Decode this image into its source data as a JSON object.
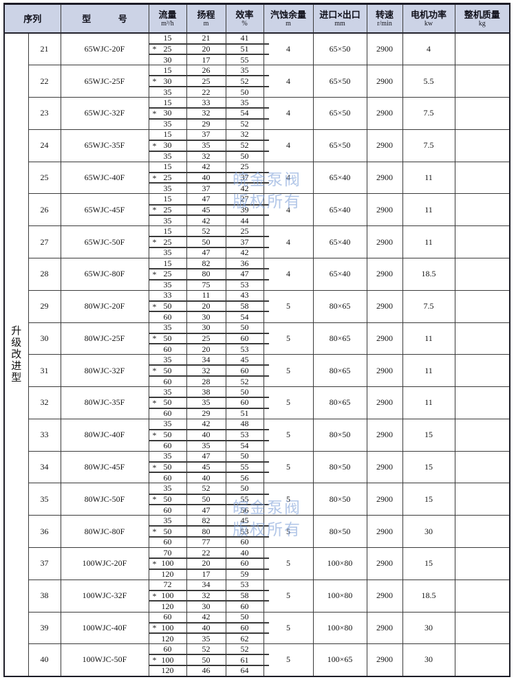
{
  "category_label": "升级改进型",
  "watermark": {
    "line1": "皖金泵阀",
    "line2": "版权所有"
  },
  "colors": {
    "header_bg": "#ccd3e6",
    "border_dark": "#1c1c26",
    "grid_line": "#3a3a3a",
    "watermark_blue": "#80a2d8"
  },
  "header": {
    "seq": {
      "label": "序列"
    },
    "model": {
      "label": "型 号"
    },
    "flow": {
      "label": "流量",
      "unit": "m³/h"
    },
    "head": {
      "label": "扬程",
      "unit": "m"
    },
    "eff": {
      "label": "效率",
      "unit": "%"
    },
    "npsh": {
      "label": "汽蚀余量",
      "unit": "m"
    },
    "ports": {
      "label": "进口×出口",
      "unit": "mm"
    },
    "speed": {
      "label": "转速",
      "unit": "r/min"
    },
    "power": {
      "label": "电机功率",
      "unit": "kw"
    },
    "weight": {
      "label": "整机质量",
      "unit": "kg"
    }
  },
  "rows": [
    {
      "seq": "21",
      "model": "65WJC-20F",
      "sub": [
        {
          "flow": "15",
          "head": "21",
          "eff": "41",
          "star": false
        },
        {
          "flow": "25",
          "head": "20",
          "eff": "51",
          "star": true
        },
        {
          "flow": "30",
          "head": "17",
          "eff": "55",
          "star": false
        }
      ],
      "npsh": "4",
      "ports": "65×50",
      "speed": "2900",
      "power": "4",
      "weight": ""
    },
    {
      "seq": "22",
      "model": "65WJC-25F",
      "sub": [
        {
          "flow": "15",
          "head": "26",
          "eff": "35",
          "star": false
        },
        {
          "flow": "30",
          "head": "25",
          "eff": "52",
          "star": true
        },
        {
          "flow": "35",
          "head": "22",
          "eff": "50",
          "star": false
        }
      ],
      "npsh": "4",
      "ports": "65×50",
      "speed": "2900",
      "power": "5.5",
      "weight": ""
    },
    {
      "seq": "23",
      "model": "65WJC-32F",
      "sub": [
        {
          "flow": "15",
          "head": "33",
          "eff": "35",
          "star": false
        },
        {
          "flow": "30",
          "head": "32",
          "eff": "54",
          "star": true
        },
        {
          "flow": "35",
          "head": "29",
          "eff": "52",
          "star": false
        }
      ],
      "npsh": "4",
      "ports": "65×50",
      "speed": "2900",
      "power": "7.5",
      "weight": ""
    },
    {
      "seq": "24",
      "model": "65WJC-35F",
      "sub": [
        {
          "flow": "15",
          "head": "37",
          "eff": "32",
          "star": false
        },
        {
          "flow": "30",
          "head": "35",
          "eff": "52",
          "star": true
        },
        {
          "flow": "35",
          "head": "32",
          "eff": "50",
          "star": false
        }
      ],
      "npsh": "4",
      "ports": "65×50",
      "speed": "2900",
      "power": "7.5",
      "weight": ""
    },
    {
      "seq": "25",
      "model": "65WJC-40F",
      "sub": [
        {
          "flow": "15",
          "head": "42",
          "eff": "25",
          "star": false
        },
        {
          "flow": "25",
          "head": "40",
          "eff": "37",
          "star": true
        },
        {
          "flow": "35",
          "head": "37",
          "eff": "42",
          "star": false
        }
      ],
      "npsh": "4",
      "ports": "65×40",
      "speed": "2900",
      "power": "11",
      "weight": ""
    },
    {
      "seq": "26",
      "model": "65WJC-45F",
      "sub": [
        {
          "flow": "15",
          "head": "47",
          "eff": "27",
          "star": false
        },
        {
          "flow": "25",
          "head": "45",
          "eff": "39",
          "star": true
        },
        {
          "flow": "35",
          "head": "42",
          "eff": "44",
          "star": false
        }
      ],
      "npsh": "4",
      "ports": "65×40",
      "speed": "2900",
      "power": "11",
      "weight": ""
    },
    {
      "seq": "27",
      "model": "65WJC-50F",
      "sub": [
        {
          "flow": "15",
          "head": "52",
          "eff": "25",
          "star": false
        },
        {
          "flow": "25",
          "head": "50",
          "eff": "37",
          "star": true
        },
        {
          "flow": "35",
          "head": "47",
          "eff": "42",
          "star": false
        }
      ],
      "npsh": "4",
      "ports": "65×40",
      "speed": "2900",
      "power": "11",
      "weight": ""
    },
    {
      "seq": "28",
      "model": "65WJC-80F",
      "sub": [
        {
          "flow": "15",
          "head": "82",
          "eff": "36",
          "star": false
        },
        {
          "flow": "25",
          "head": "80",
          "eff": "47",
          "star": true
        },
        {
          "flow": "35",
          "head": "75",
          "eff": "53",
          "star": false
        }
      ],
      "npsh": "4",
      "ports": "65×40",
      "speed": "2900",
      "power": "18.5",
      "weight": ""
    },
    {
      "seq": "29",
      "model": "80WJC-20F",
      "sub": [
        {
          "flow": "33",
          "head": "11",
          "eff": "43",
          "star": false
        },
        {
          "flow": "50",
          "head": "20",
          "eff": "58",
          "star": true
        },
        {
          "flow": "60",
          "head": "30",
          "eff": "54",
          "star": false
        }
      ],
      "npsh": "5",
      "ports": "80×65",
      "speed": "2900",
      "power": "7.5",
      "weight": ""
    },
    {
      "seq": "30",
      "model": "80WJC-25F",
      "sub": [
        {
          "flow": "35",
          "head": "30",
          "eff": "50",
          "star": false
        },
        {
          "flow": "50",
          "head": "25",
          "eff": "60",
          "star": true
        },
        {
          "flow": "60",
          "head": "20",
          "eff": "53",
          "star": false
        }
      ],
      "npsh": "5",
      "ports": "80×65",
      "speed": "2900",
      "power": "11",
      "weight": ""
    },
    {
      "seq": "31",
      "model": "80WJC-32F",
      "sub": [
        {
          "flow": "35",
          "head": "34",
          "eff": "45",
          "star": false
        },
        {
          "flow": "50",
          "head": "32",
          "eff": "60",
          "star": true
        },
        {
          "flow": "60",
          "head": "28",
          "eff": "52",
          "star": false
        }
      ],
      "npsh": "5",
      "ports": "80×65",
      "speed": "2900",
      "power": "11",
      "weight": ""
    },
    {
      "seq": "32",
      "model": "80WJC-35F",
      "sub": [
        {
          "flow": "35",
          "head": "38",
          "eff": "50",
          "star": false
        },
        {
          "flow": "50",
          "head": "35",
          "eff": "60",
          "star": true
        },
        {
          "flow": "60",
          "head": "29",
          "eff": "51",
          "star": false
        }
      ],
      "npsh": "5",
      "ports": "80×65",
      "speed": "2900",
      "power": "11",
      "weight": ""
    },
    {
      "seq": "33",
      "model": "80WJC-40F",
      "sub": [
        {
          "flow": "35",
          "head": "42",
          "eff": "48",
          "star": false
        },
        {
          "flow": "50",
          "head": "40",
          "eff": "53",
          "star": true
        },
        {
          "flow": "60",
          "head": "35",
          "eff": "54",
          "star": false
        }
      ],
      "npsh": "5",
      "ports": "80×50",
      "speed": "2900",
      "power": "15",
      "weight": ""
    },
    {
      "seq": "34",
      "model": "80WJC-45F",
      "sub": [
        {
          "flow": "35",
          "head": "47",
          "eff": "50",
          "star": false
        },
        {
          "flow": "50",
          "head": "45",
          "eff": "55",
          "star": true
        },
        {
          "flow": "60",
          "head": "40",
          "eff": "56",
          "star": false
        }
      ],
      "npsh": "5",
      "ports": "80×50",
      "speed": "2900",
      "power": "15",
      "weight": ""
    },
    {
      "seq": "35",
      "model": "80WJC-50F",
      "sub": [
        {
          "flow": "35",
          "head": "52",
          "eff": "50",
          "star": false
        },
        {
          "flow": "50",
          "head": "50",
          "eff": "55",
          "star": true
        },
        {
          "flow": "60",
          "head": "47",
          "eff": "56",
          "star": false
        }
      ],
      "npsh": "5",
      "ports": "80×50",
      "speed": "2900",
      "power": "15",
      "weight": ""
    },
    {
      "seq": "36",
      "model": "80WJC-80F",
      "sub": [
        {
          "flow": "35",
          "head": "82",
          "eff": "45",
          "star": false
        },
        {
          "flow": "50",
          "head": "80",
          "eff": "53",
          "star": true
        },
        {
          "flow": "60",
          "head": "77",
          "eff": "60",
          "star": false
        }
      ],
      "npsh": "5",
      "ports": "80×50",
      "speed": "2900",
      "power": "30",
      "weight": ""
    },
    {
      "seq": "37",
      "model": "100WJC-20F",
      "sub": [
        {
          "flow": "70",
          "head": "22",
          "eff": "40",
          "star": false
        },
        {
          "flow": "100",
          "head": "20",
          "eff": "60",
          "star": true
        },
        {
          "flow": "120",
          "head": "17",
          "eff": "59",
          "star": false
        }
      ],
      "npsh": "5",
      "ports": "100×80",
      "speed": "2900",
      "power": "15",
      "weight": ""
    },
    {
      "seq": "38",
      "model": "100WJC-32F",
      "sub": [
        {
          "flow": "72",
          "head": "34",
          "eff": "53",
          "star": false
        },
        {
          "flow": "100",
          "head": "32",
          "eff": "58",
          "star": true
        },
        {
          "flow": "120",
          "head": "30",
          "eff": "60",
          "star": false
        }
      ],
      "npsh": "5",
      "ports": "100×80",
      "speed": "2900",
      "power": "18.5",
      "weight": ""
    },
    {
      "seq": "39",
      "model": "100WJC-40F",
      "sub": [
        {
          "flow": "60",
          "head": "42",
          "eff": "50",
          "star": false
        },
        {
          "flow": "100",
          "head": "40",
          "eff": "60",
          "star": true
        },
        {
          "flow": "120",
          "head": "35",
          "eff": "62",
          "star": false
        }
      ],
      "npsh": "5",
      "ports": "100×80",
      "speed": "2900",
      "power": "30",
      "weight": ""
    },
    {
      "seq": "40",
      "model": "100WJC-50F",
      "sub": [
        {
          "flow": "60",
          "head": "52",
          "eff": "52",
          "star": false
        },
        {
          "flow": "100",
          "head": "50",
          "eff": "61",
          "star": true
        },
        {
          "flow": "120",
          "head": "46",
          "eff": "64",
          "star": false
        }
      ],
      "npsh": "5",
      "ports": "100×65",
      "speed": "2900",
      "power": "30",
      "weight": ""
    }
  ]
}
